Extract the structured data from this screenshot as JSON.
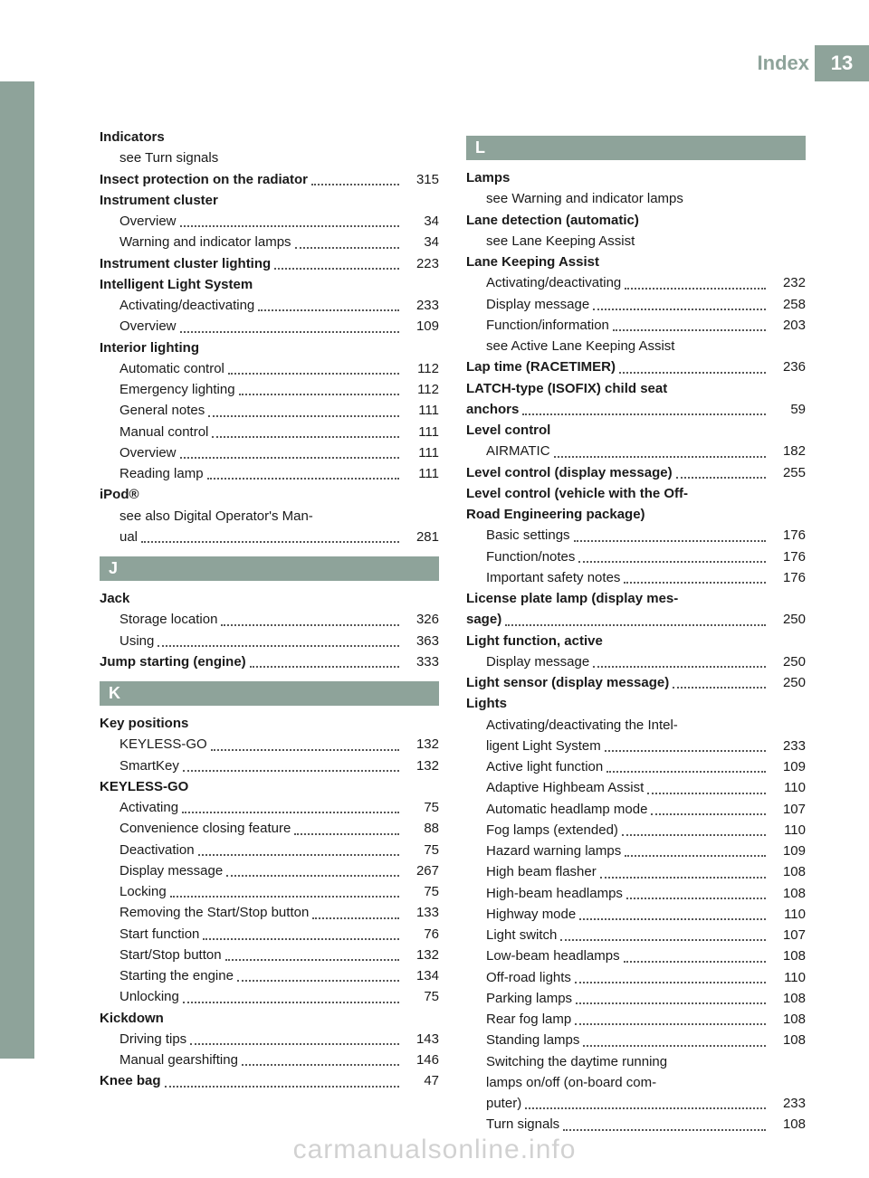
{
  "header": {
    "title": "Index",
    "page": "13"
  },
  "watermark": "carmanualsonline.info",
  "columns": {
    "left": [
      {
        "type": "entry",
        "indent": 0,
        "bold": true,
        "text": "Indicators"
      },
      {
        "type": "entry",
        "indent": 1,
        "text": "see Turn signals"
      },
      {
        "type": "entry",
        "indent": 0,
        "bold": true,
        "text": "Insect protection on the radiator",
        "page": "315"
      },
      {
        "type": "entry",
        "indent": 0,
        "bold": true,
        "text": "Instrument cluster"
      },
      {
        "type": "entry",
        "indent": 1,
        "text": "Overview",
        "page": "34"
      },
      {
        "type": "entry",
        "indent": 1,
        "text": "Warning and indicator lamps",
        "page": "34"
      },
      {
        "type": "entry",
        "indent": 0,
        "bold": true,
        "text": "Instrument cluster lighting",
        "page": "223"
      },
      {
        "type": "entry",
        "indent": 0,
        "bold": true,
        "text": "Intelligent Light System"
      },
      {
        "type": "entry",
        "indent": 1,
        "text": "Activating/deactivating",
        "page": "233"
      },
      {
        "type": "entry",
        "indent": 1,
        "text": "Overview",
        "page": "109"
      },
      {
        "type": "entry",
        "indent": 0,
        "bold": true,
        "text": "Interior lighting"
      },
      {
        "type": "entry",
        "indent": 1,
        "text": "Automatic control",
        "page": "112"
      },
      {
        "type": "entry",
        "indent": 1,
        "text": "Emergency lighting",
        "page": "112"
      },
      {
        "type": "entry",
        "indent": 1,
        "text": "General notes",
        "page": "111"
      },
      {
        "type": "entry",
        "indent": 1,
        "text": "Manual control",
        "page": "111"
      },
      {
        "type": "entry",
        "indent": 1,
        "text": "Overview",
        "page": "111"
      },
      {
        "type": "entry",
        "indent": 1,
        "text": "Reading lamp",
        "page": "111"
      },
      {
        "type": "entry",
        "indent": 0,
        "bold": true,
        "text": "iPod®"
      },
      {
        "type": "entry",
        "indent": 1,
        "text": "see also Digital Operator's Man-\nual",
        "page": "281"
      },
      {
        "type": "section",
        "letter": "J"
      },
      {
        "type": "entry",
        "indent": 0,
        "bold": true,
        "text": "Jack"
      },
      {
        "type": "entry",
        "indent": 1,
        "text": "Storage location",
        "page": "326"
      },
      {
        "type": "entry",
        "indent": 1,
        "text": "Using",
        "page": "363"
      },
      {
        "type": "entry",
        "indent": 0,
        "bold": true,
        "text": "Jump starting (engine)",
        "page": "333"
      },
      {
        "type": "section",
        "letter": "K"
      },
      {
        "type": "entry",
        "indent": 0,
        "bold": true,
        "text": "Key positions"
      },
      {
        "type": "entry",
        "indent": 1,
        "text": "KEYLESS-GO",
        "page": "132"
      },
      {
        "type": "entry",
        "indent": 1,
        "text": "SmartKey",
        "page": "132"
      },
      {
        "type": "entry",
        "indent": 0,
        "bold": true,
        "text": "KEYLESS-GO"
      },
      {
        "type": "entry",
        "indent": 1,
        "text": "Activating",
        "page": "75"
      },
      {
        "type": "entry",
        "indent": 1,
        "text": "Convenience closing feature",
        "page": "88"
      },
      {
        "type": "entry",
        "indent": 1,
        "text": "Deactivation",
        "page": "75"
      },
      {
        "type": "entry",
        "indent": 1,
        "text": "Display message",
        "page": "267"
      },
      {
        "type": "entry",
        "indent": 1,
        "text": "Locking",
        "page": "75"
      },
      {
        "type": "entry",
        "indent": 1,
        "text": "Removing the Start/Stop button",
        "page": "133"
      },
      {
        "type": "entry",
        "indent": 1,
        "text": "Start function",
        "page": "76"
      },
      {
        "type": "entry",
        "indent": 1,
        "text": "Start/Stop button",
        "page": "132"
      },
      {
        "type": "entry",
        "indent": 1,
        "text": "Starting the engine",
        "page": "134"
      },
      {
        "type": "entry",
        "indent": 1,
        "text": "Unlocking",
        "page": "75"
      },
      {
        "type": "entry",
        "indent": 0,
        "bold": true,
        "text": "Kickdown"
      },
      {
        "type": "entry",
        "indent": 1,
        "text": "Driving tips",
        "page": "143"
      },
      {
        "type": "entry",
        "indent": 1,
        "text": "Manual gearshifting",
        "page": "146"
      },
      {
        "type": "entry",
        "indent": 0,
        "bold": true,
        "text": "Knee bag",
        "page": "47"
      }
    ],
    "right": [
      {
        "type": "section",
        "letter": "L"
      },
      {
        "type": "entry",
        "indent": 0,
        "bold": true,
        "text": "Lamps"
      },
      {
        "type": "entry",
        "indent": 1,
        "text": "see Warning and indicator lamps"
      },
      {
        "type": "entry",
        "indent": 0,
        "bold": true,
        "text": "Lane detection (automatic)"
      },
      {
        "type": "entry",
        "indent": 1,
        "text": "see Lane Keeping Assist"
      },
      {
        "type": "entry",
        "indent": 0,
        "bold": true,
        "text": "Lane Keeping Assist"
      },
      {
        "type": "entry",
        "indent": 1,
        "text": "Activating/deactivating",
        "page": "232"
      },
      {
        "type": "entry",
        "indent": 1,
        "text": "Display message",
        "page": "258"
      },
      {
        "type": "entry",
        "indent": 1,
        "text": "Function/information",
        "page": "203"
      },
      {
        "type": "entry",
        "indent": 1,
        "text": "see Active Lane Keeping Assist"
      },
      {
        "type": "entry",
        "indent": 0,
        "bold": true,
        "text": "Lap time (RACETIMER)",
        "page": "236"
      },
      {
        "type": "entry",
        "indent": 0,
        "bold": true,
        "text": "LATCH-type (ISOFIX) child seat\nanchors",
        "page": "59"
      },
      {
        "type": "entry",
        "indent": 0,
        "bold": true,
        "text": "Level control"
      },
      {
        "type": "entry",
        "indent": 1,
        "text": "AIRMATIC",
        "page": "182"
      },
      {
        "type": "entry",
        "indent": 0,
        "bold": true,
        "text": "Level control (display message)",
        "page": "255"
      },
      {
        "type": "entry",
        "indent": 0,
        "bold": true,
        "text": "Level control (vehicle with the Off-\nRoad Engineering package)"
      },
      {
        "type": "entry",
        "indent": 1,
        "text": "Basic settings",
        "page": "176"
      },
      {
        "type": "entry",
        "indent": 1,
        "text": "Function/notes",
        "page": "176"
      },
      {
        "type": "entry",
        "indent": 1,
        "text": "Important safety notes",
        "page": "176"
      },
      {
        "type": "entry",
        "indent": 0,
        "bold": true,
        "text": "License plate lamp (display mes-\nsage)",
        "page": "250"
      },
      {
        "type": "entry",
        "indent": 0,
        "bold": true,
        "text": "Light function, active"
      },
      {
        "type": "entry",
        "indent": 1,
        "text": "Display message",
        "page": "250"
      },
      {
        "type": "entry",
        "indent": 0,
        "bold": true,
        "text": "Light sensor (display message)",
        "page": "250"
      },
      {
        "type": "entry",
        "indent": 0,
        "bold": true,
        "text": "Lights"
      },
      {
        "type": "entry",
        "indent": 1,
        "text": "Activating/deactivating the Intel-\nligent Light System",
        "page": "233"
      },
      {
        "type": "entry",
        "indent": 1,
        "text": "Active light function",
        "page": "109"
      },
      {
        "type": "entry",
        "indent": 1,
        "text": "Adaptive Highbeam Assist",
        "page": "110"
      },
      {
        "type": "entry",
        "indent": 1,
        "text": "Automatic headlamp mode",
        "page": "107"
      },
      {
        "type": "entry",
        "indent": 1,
        "text": "Fog lamps (extended)",
        "page": "110"
      },
      {
        "type": "entry",
        "indent": 1,
        "text": "Hazard warning lamps",
        "page": "109"
      },
      {
        "type": "entry",
        "indent": 1,
        "text": "High beam flasher",
        "page": "108"
      },
      {
        "type": "entry",
        "indent": 1,
        "text": "High-beam headlamps",
        "page": "108"
      },
      {
        "type": "entry",
        "indent": 1,
        "text": "Highway mode",
        "page": "110"
      },
      {
        "type": "entry",
        "indent": 1,
        "text": "Light switch",
        "page": "107"
      },
      {
        "type": "entry",
        "indent": 1,
        "text": "Low-beam headlamps",
        "page": "108"
      },
      {
        "type": "entry",
        "indent": 1,
        "text": "Off-road lights",
        "page": "110"
      },
      {
        "type": "entry",
        "indent": 1,
        "text": "Parking lamps",
        "page": "108"
      },
      {
        "type": "entry",
        "indent": 1,
        "text": "Rear fog lamp",
        "page": "108"
      },
      {
        "type": "entry",
        "indent": 1,
        "text": "Standing lamps",
        "page": "108"
      },
      {
        "type": "entry",
        "indent": 1,
        "text": "Switching the daytime running\nlamps on/off (on-board com-\nputer)",
        "page": "233"
      },
      {
        "type": "entry",
        "indent": 1,
        "text": "Turn signals",
        "page": "108"
      }
    ]
  },
  "colors": {
    "accent": "#8ea39a",
    "text": "#1a1a1a",
    "watermark": "rgba(0,0,0,0.18)"
  }
}
